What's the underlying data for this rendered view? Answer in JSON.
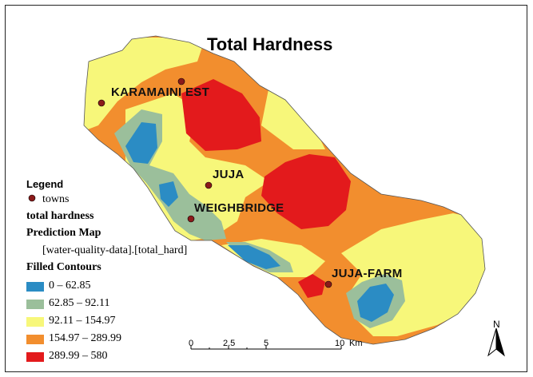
{
  "title": "Total Hardness",
  "towns": [
    {
      "name": "KARAMAINI EST"
    },
    {
      "name": "JUJA"
    },
    {
      "name": "WEIGHBRIDGE"
    },
    {
      "name": "JUJA-FARM"
    }
  ],
  "legend": {
    "heading": "Legend",
    "towns_label": "towns",
    "layer_title": "total hardness",
    "map_title": "Prediction Map",
    "field": "[water-quality-data].[total_hard]",
    "contours_title": "Filled Contours",
    "classes": [
      {
        "label": "0 – 62.85",
        "color": "#2b8cc4"
      },
      {
        "label": "62.85 – 92.11",
        "color": "#9bbf9b"
      },
      {
        "label": "92.11 – 154.97",
        "color": "#f7f77a"
      },
      {
        "label": "154.97 – 289.99",
        "color": "#f28e2e"
      },
      {
        "label": "289.99 – 580",
        "color": "#e31a1c"
      }
    ]
  },
  "scale_bar": {
    "ticks": [
      "0",
      "2.5",
      "5",
      "10"
    ],
    "unit": "Km"
  },
  "north_arrow": {
    "label": "N"
  },
  "colors": {
    "town_marker": "#8b1a1a",
    "boundary": "#555555"
  }
}
